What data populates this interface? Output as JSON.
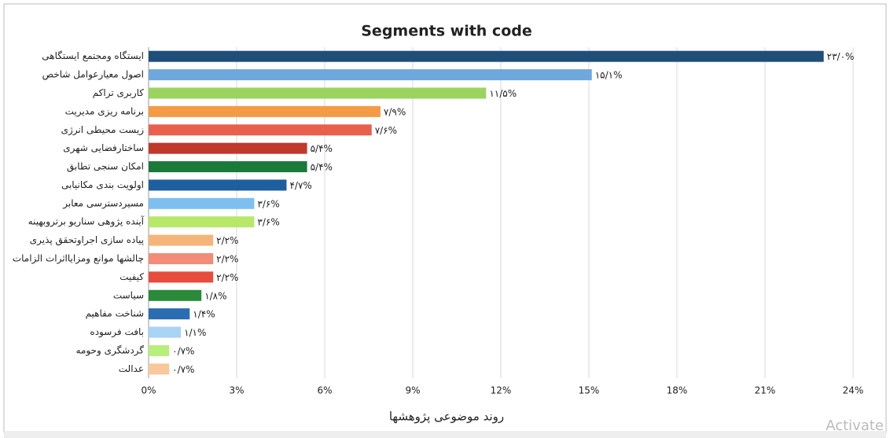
{
  "chart_data": {
    "type": "barh",
    "title": "Segments with code",
    "xlabel": "روند موضوعی پژوهشها",
    "watermark": "Activate",
    "categories": [
      "ایستگاه ومجتمع ایستگاهی",
      "اصول معیارعوامل شاخص",
      "کاربری تراکم",
      "برنامه ریزی مدیریت",
      "زیست محیطی انرژی",
      "ساختارفضایی شهری",
      "امکان سنجی تطابق",
      "اولویت بندی مکانیابی",
      "مسیردسترسی معابر",
      "آینده پژوهی سناریو برتروبهینه",
      "پیاده سازی اجراوتحقق پذیری",
      "چالشها موانع ومزایااثرات الزامات",
      "کیفیت",
      "سیاست",
      "شناخت مفاهیم",
      "بافت فرسوده",
      "گردشگری وحومه",
      "عدالت"
    ],
    "values": [
      23.0,
      15.1,
      11.5,
      7.9,
      7.6,
      5.4,
      5.4,
      4.7,
      3.6,
      3.6,
      2.2,
      2.2,
      2.2,
      1.8,
      1.4,
      1.1,
      0.7,
      0.7
    ],
    "value_labels": [
      "۲۳/۰%",
      "۱۵/۱%",
      "۱۱/۵%",
      "۷/۹%",
      "۷/۶%",
      "۵/۴%",
      "۵/۴%",
      "۴/۷%",
      "۳/۶%",
      "۳/۶%",
      "۲/۲%",
      "۲/۲%",
      "۲/۲%",
      "۱/۸%",
      "۱/۴%",
      "۱/۱%",
      "۰/۷%",
      "۰/۷%"
    ],
    "colors": [
      "#1f4e79",
      "#6fa8dc",
      "#9bd35f",
      "#f39c45",
      "#e8604c",
      "#c0392b",
      "#1a7a3a",
      "#1f5fa0",
      "#7dc0f0",
      "#b8e86a",
      "#f5b57a",
      "#f28b78",
      "#e84c3c",
      "#2a8a3a",
      "#2a6db0",
      "#a8d4f5",
      "#b8ee7a",
      "#f8c89a"
    ],
    "xlim": [
      0,
      24
    ],
    "xticks": [
      {
        "value": 0,
        "label": "0%"
      },
      {
        "value": 3,
        "label": "3%"
      },
      {
        "value": 6,
        "label": "6%"
      },
      {
        "value": 9,
        "label": "9%"
      },
      {
        "value": 12,
        "label": "12%"
      },
      {
        "value": 15,
        "label": "15%"
      },
      {
        "value": 18,
        "label": "18%"
      },
      {
        "value": 21,
        "label": "21%"
      },
      {
        "value": 24,
        "label": "24%"
      }
    ],
    "grid": true
  }
}
